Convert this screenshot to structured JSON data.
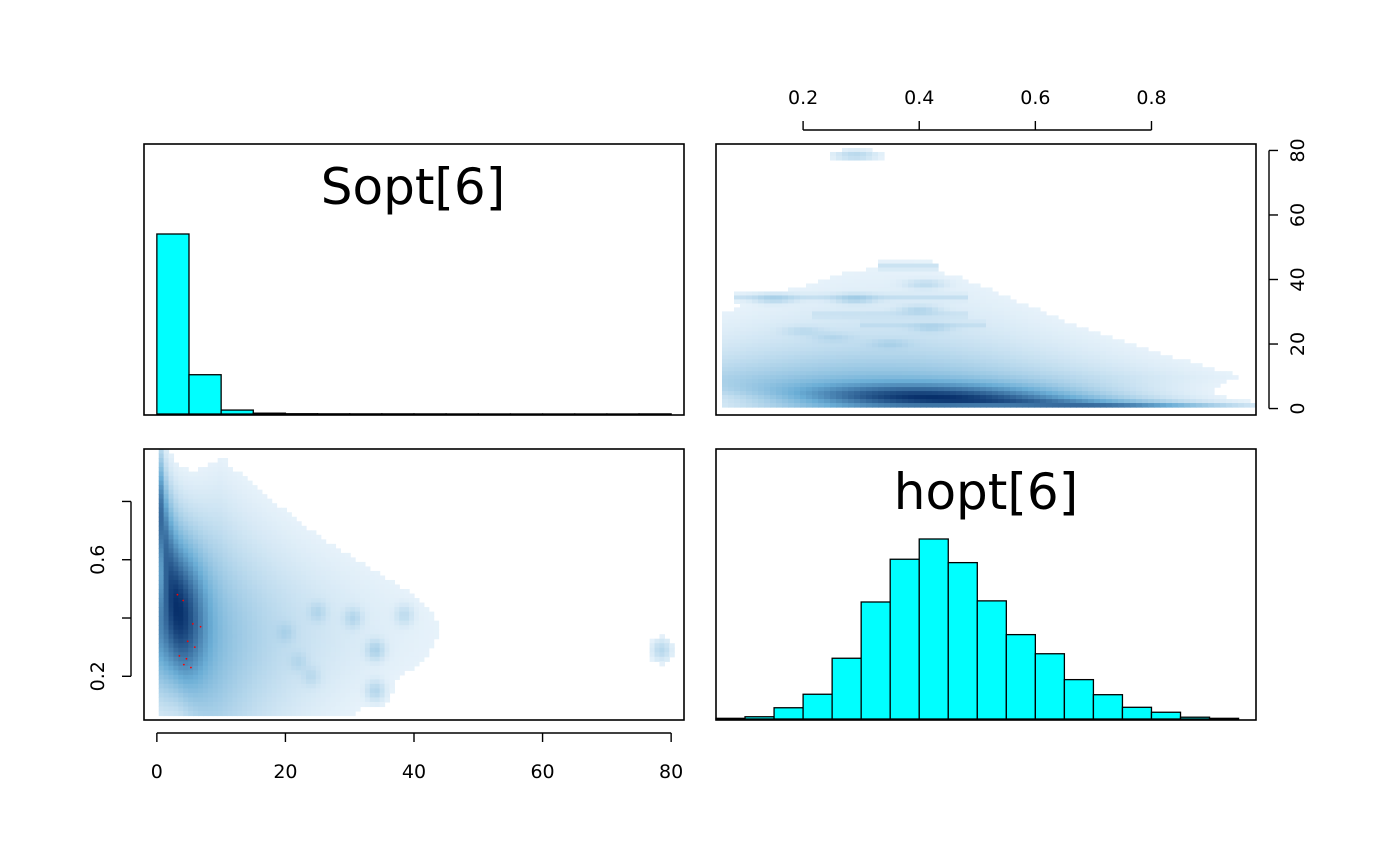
{
  "chart_data": [
    {
      "type": "bar",
      "panel": "top-left",
      "title": "Sopt[6]",
      "bin_width": 5,
      "x_bins_start": [
        0,
        5,
        10,
        15,
        20,
        25,
        30,
        35,
        40,
        45,
        50,
        55,
        60,
        65,
        70,
        75
      ],
      "counts": [
        5500,
        1200,
        120,
        25,
        8,
        5,
        4,
        4,
        3,
        2,
        1,
        1,
        1,
        1,
        1,
        3
      ],
      "xlim": [
        -2,
        82
      ],
      "bar_color": "#00FFFF"
    },
    {
      "type": "heatmap",
      "panel": "top-right",
      "x_name": "hopt[6]",
      "y_name": "Sopt[6]",
      "xlim": [
        0.05,
        0.98
      ],
      "ylim": [
        -2,
        82
      ],
      "x_ticks": [
        0.2,
        0.4,
        0.6,
        0.8
      ],
      "x_tick_labels": [
        "0.2",
        "0.4",
        "0.6",
        "0.8"
      ],
      "y_ticks": [
        0,
        20,
        40,
        60,
        80
      ],
      "y_tick_labels": [
        "0",
        "20",
        "40",
        "60",
        "80"
      ],
      "color_low": "#FFFFFF",
      "color_high": "#08306B"
    },
    {
      "type": "heatmap",
      "panel": "bottom-left",
      "x_name": "Sopt[6]",
      "y_name": "hopt[6]",
      "xlim": [
        -2,
        82
      ],
      "ylim": [
        0.05,
        0.98
      ],
      "x_ticks": [
        0,
        20,
        40,
        60,
        80
      ],
      "x_tick_labels": [
        "0",
        "20",
        "40",
        "60",
        "80"
      ],
      "y_ticks": [
        0.2,
        0.6
      ],
      "y_tick_labels": [
        "0.2",
        "0.6"
      ],
      "y_minor_ticks": [
        0.4,
        0.8
      ],
      "color_low": "#FFFFFF",
      "color_high": "#08306B",
      "outlier_color": "#FF0000",
      "outliers": [
        [
          3.2,
          0.48
        ],
        [
          4.1,
          0.46
        ],
        [
          5.6,
          0.38
        ],
        [
          6.8,
          0.37
        ],
        [
          3.5,
          0.27
        ],
        [
          4.6,
          0.26
        ],
        [
          4.2,
          0.24
        ],
        [
          5.3,
          0.23
        ],
        [
          5.9,
          0.3
        ],
        [
          4.8,
          0.32
        ]
      ]
    },
    {
      "type": "bar",
      "panel": "bottom-right",
      "title": "hopt[6]",
      "bin_width": 0.05,
      "x_bins_start": [
        0.05,
        0.1,
        0.15,
        0.2,
        0.25,
        0.3,
        0.35,
        0.4,
        0.45,
        0.5,
        0.55,
        0.6,
        0.65,
        0.7,
        0.75,
        0.8,
        0.85,
        0.9
      ],
      "counts": [
        3,
        10,
        50,
        110,
        270,
        520,
        710,
        800,
        695,
        525,
        375,
        290,
        175,
        108,
        52,
        30,
        8,
        3
      ],
      "xlim": [
        0.05,
        0.98
      ],
      "bar_color": "#00FFFF"
    }
  ]
}
